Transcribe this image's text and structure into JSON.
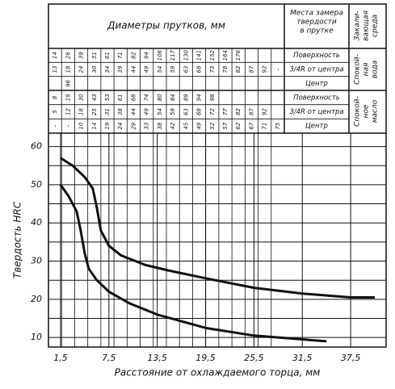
{
  "table": {
    "title": "Диаметры прутков, мм",
    "location_header": [
      "Места замера",
      "твердости",
      "в прутке"
    ],
    "medium_header": [
      "Закали-",
      "вающая",
      "среда"
    ],
    "blocks": [
      {
        "medium": [
          "Спокой-",
          "ная",
          "вода"
        ],
        "rows": [
          {
            "label": "Поверхность",
            "cells": [
              "14",
              "26",
              "39",
              "51",
              "61",
              "71",
              "82",
              "94",
              "106",
              "117",
              "130",
              "141",
              "152",
              "164",
              "176",
              null,
              null,
              null
            ]
          },
          {
            "label": "3/4R от центра",
            "cells": [
              "13",
              "18",
              "24",
              "30",
              "34",
              "39",
              "44",
              "49",
              "54",
              "59",
              "63",
              "68",
              "73",
              "78",
              "82",
              "87",
              "92",
              "–"
            ]
          },
          {
            "label": "Центр",
            "cells": [
              null,
              "96",
              null,
              null,
              null,
              null,
              null,
              null,
              null,
              null,
              null,
              null,
              null,
              null,
              null,
              null,
              null,
              null
            ]
          }
        ]
      },
      {
        "medium": [
          "Спокой-",
          "ное",
          "масло"
        ],
        "rows": [
          {
            "label": "Поверхность",
            "cells": [
              "8",
              "19",
              "30",
              "43",
              "53",
              "61",
              "68",
              "74",
              "80",
              "84",
              "89",
              "94",
              "98",
              null,
              null,
              null,
              null,
              null
            ]
          },
          {
            "label": "3/4R от центра",
            "cells": [
              "5",
              "12",
              "18",
              "25",
              "31",
              "38",
              "44",
              "49",
              "54",
              "59",
              "63",
              "68",
              "72",
              "77",
              "82",
              "87",
              "92",
              null
            ]
          },
          {
            "label": "Центр",
            "cells": [
              "–",
              "–",
              "10",
              "14",
              "19",
              "24",
              "29",
              "33",
              "38",
              "42",
              "45",
              "49",
              "52",
              "57",
              "62",
              "67",
              "71",
              "75"
            ]
          }
        ]
      }
    ]
  },
  "chart_data": {
    "type": "line",
    "xlabel": "Расстояние от охлаждаемого торца, мм",
    "ylabel": "Твердость HRC",
    "xlim": [
      0,
      41.9
    ],
    "ylim": [
      7.5,
      63.5
    ],
    "xticks": [
      {
        "value": 1.5,
        "label": "1,5"
      },
      {
        "value": 7.5,
        "label": "7,5"
      },
      {
        "value": 13.5,
        "label": "13,5"
      },
      {
        "value": 19.5,
        "label": "19,5"
      },
      {
        "value": 25.5,
        "label": "25,5"
      },
      {
        "value": 31.5,
        "label": "31,5"
      },
      {
        "value": 37.5,
        "label": "37,5"
      }
    ],
    "yticks": [
      10,
      20,
      30,
      40,
      50,
      60
    ],
    "grid": true,
    "series": [
      {
        "color": "#111111",
        "x": [
          1.5,
          3,
          4.5,
          5.5,
          6,
          6.5,
          7.5,
          9,
          12,
          15,
          19.5,
          25.5,
          31.5,
          37.5,
          40.5
        ],
        "values": [
          57,
          55,
          52,
          49,
          44,
          38,
          34,
          31.5,
          29,
          27.5,
          25.5,
          23,
          21.5,
          20.5,
          20.5
        ]
      },
      {
        "color": "#111111",
        "x": [
          1.5,
          2.5,
          3.5,
          4,
          4.5,
          5,
          6,
          7.5,
          10,
          13.5,
          19.5,
          25.5,
          31.5,
          34.5
        ],
        "values": [
          50,
          47,
          43,
          38,
          32,
          28,
          25,
          22,
          19,
          16,
          12.5,
          10.5,
          9.5,
          9
        ]
      }
    ]
  }
}
